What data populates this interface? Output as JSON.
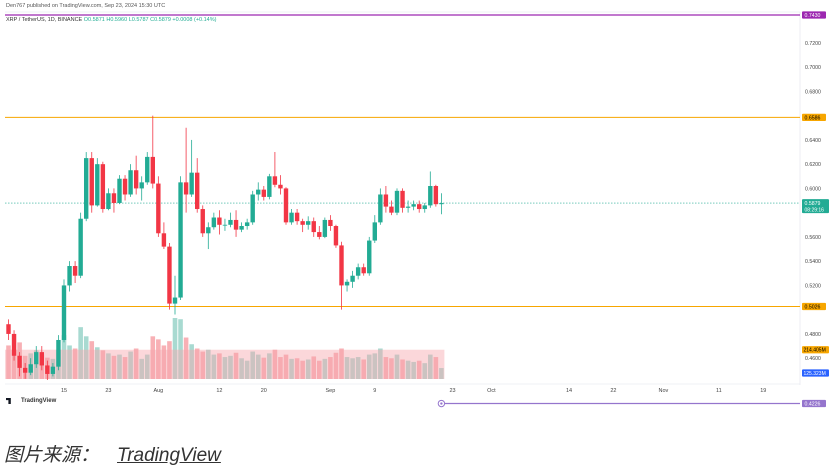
{
  "header": {
    "published_line": "Den767 published on TradingView.com, Sep 23, 2024 15:30 UTC",
    "symbol": "XRP / TetherUS, 1D, BINANCE",
    "ohlc": "O0.5871 H0.5960 L0.5787 C0.5879 +0.0008 (+0.14%)"
  },
  "watermark": "TradingView",
  "caption": {
    "label": "图片来源：",
    "link": "TradingView"
  },
  "colors": {
    "up": "#22ab94",
    "down": "#f23645",
    "vol_up": "#9fd6cc",
    "vol_down": "#f7a7ad",
    "resistance": "#f7a600",
    "top_line": "#9c27b0",
    "bottom_line": "#9575cd",
    "price_line": "#22ab94"
  },
  "chart_data": {
    "type": "candlestick",
    "ylim": [
      0.442,
      0.7455
    ],
    "y_ticks": [
      "0.7200",
      "0.7000",
      "0.6800",
      "0.6400",
      "0.6200",
      "0.6000",
      "0.5600",
      "0.5400",
      "0.5200",
      "0.4800",
      "0.4600"
    ],
    "x_ticks": [
      {
        "label": "15",
        "i": 10
      },
      {
        "label": "23",
        "i": 18
      },
      {
        "label": "Aug",
        "i": 27
      },
      {
        "label": "12",
        "i": 38
      },
      {
        "label": "20",
        "i": 46
      },
      {
        "label": "Sep",
        "i": 58
      },
      {
        "label": "9",
        "i": 66
      },
      {
        "label": "23",
        "i": 80
      },
      {
        "label": "Oct",
        "i": 87
      },
      {
        "label": "14",
        "i": 101
      },
      {
        "label": "22",
        "i": 109
      },
      {
        "label": "Nov",
        "i": 118
      },
      {
        "label": "11",
        "i": 128
      },
      {
        "label": "19",
        "i": 136
      }
    ],
    "levels": [
      {
        "name": "top",
        "value": 0.743,
        "label": "0.7430"
      },
      {
        "name": "resistance",
        "value": 0.6586,
        "label": "0.6586"
      },
      {
        "name": "support",
        "value": 0.5026,
        "label": "0.5026"
      },
      {
        "name": "bottom",
        "value": 0.4226,
        "label": "0.4226"
      }
    ],
    "last_price": {
      "value": 0.5879,
      "label": "0.5879",
      "countdown": "08:29:16"
    },
    "volume_labels": [
      {
        "label": "214.405M",
        "y_frac": 0.48
      },
      {
        "label": "125.323M",
        "y_frac": 0.94
      }
    ],
    "candles": [
      [
        0.488,
        0.492,
        0.475,
        0.48
      ],
      [
        0.48,
        0.483,
        0.458,
        0.462
      ],
      [
        0.462,
        0.465,
        0.445,
        0.452
      ],
      [
        0.452,
        0.456,
        0.443,
        0.448
      ],
      [
        0.448,
        0.46,
        0.446,
        0.455
      ],
      [
        0.455,
        0.47,
        0.452,
        0.465
      ],
      [
        0.465,
        0.47,
        0.45,
        0.454
      ],
      [
        0.454,
        0.458,
        0.442,
        0.447
      ],
      [
        0.447,
        0.456,
        0.445,
        0.453
      ],
      [
        0.453,
        0.479,
        0.45,
        0.475
      ],
      [
        0.475,
        0.525,
        0.473,
        0.52
      ],
      [
        0.52,
        0.54,
        0.515,
        0.536
      ],
      [
        0.536,
        0.54,
        0.522,
        0.528
      ],
      [
        0.528,
        0.58,
        0.526,
        0.575
      ],
      [
        0.575,
        0.63,
        0.573,
        0.625
      ],
      [
        0.625,
        0.63,
        0.58,
        0.586
      ],
      [
        0.586,
        0.625,
        0.585,
        0.62
      ],
      [
        0.62,
        0.622,
        0.58,
        0.583
      ],
      [
        0.583,
        0.6,
        0.582,
        0.596
      ],
      [
        0.596,
        0.6,
        0.58,
        0.588
      ],
      [
        0.588,
        0.611,
        0.587,
        0.608
      ],
      [
        0.608,
        0.611,
        0.59,
        0.595
      ],
      [
        0.595,
        0.62,
        0.593,
        0.615
      ],
      [
        0.615,
        0.627,
        0.595,
        0.6
      ],
      [
        0.6,
        0.61,
        0.59,
        0.605
      ],
      [
        0.605,
        0.63,
        0.603,
        0.626
      ],
      [
        0.626,
        0.66,
        0.6,
        0.604
      ],
      [
        0.604,
        0.61,
        0.56,
        0.563
      ],
      [
        0.563,
        0.572,
        0.55,
        0.552
      ],
      [
        0.552,
        0.555,
        0.5,
        0.505
      ],
      [
        0.505,
        0.528,
        0.496,
        0.51
      ],
      [
        0.51,
        0.61,
        0.508,
        0.605
      ],
      [
        0.605,
        0.65,
        0.58,
        0.595
      ],
      [
        0.595,
        0.64,
        0.593,
        0.613
      ],
      [
        0.613,
        0.625,
        0.58,
        0.583
      ],
      [
        0.583,
        0.586,
        0.56,
        0.563
      ],
      [
        0.563,
        0.572,
        0.55,
        0.568
      ],
      [
        0.568,
        0.58,
        0.566,
        0.576
      ],
      [
        0.576,
        0.582,
        0.562,
        0.57
      ],
      [
        0.57,
        0.575,
        0.565,
        0.57
      ],
      [
        0.57,
        0.58,
        0.568,
        0.574
      ],
      [
        0.574,
        0.582,
        0.56,
        0.566
      ],
      [
        0.566,
        0.572,
        0.564,
        0.569
      ],
      [
        0.569,
        0.575,
        0.566,
        0.572
      ],
      [
        0.572,
        0.598,
        0.57,
        0.595
      ],
      [
        0.595,
        0.605,
        0.59,
        0.599
      ],
      [
        0.599,
        0.602,
        0.59,
        0.593
      ],
      [
        0.593,
        0.612,
        0.591,
        0.61
      ],
      [
        0.61,
        0.63,
        0.601,
        0.603
      ],
      [
        0.603,
        0.611,
        0.595,
        0.6
      ],
      [
        0.6,
        0.601,
        0.57,
        0.572
      ],
      [
        0.572,
        0.583,
        0.57,
        0.58
      ],
      [
        0.58,
        0.583,
        0.57,
        0.573
      ],
      [
        0.573,
        0.575,
        0.564,
        0.57
      ],
      [
        0.57,
        0.577,
        0.566,
        0.573
      ],
      [
        0.573,
        0.576,
        0.56,
        0.564
      ],
      [
        0.564,
        0.569,
        0.558,
        0.56
      ],
      [
        0.56,
        0.576,
        0.559,
        0.574
      ],
      [
        0.574,
        0.578,
        0.565,
        0.569
      ],
      [
        0.569,
        0.57,
        0.551,
        0.553
      ],
      [
        0.553,
        0.556,
        0.5,
        0.52
      ],
      [
        0.52,
        0.525,
        0.515,
        0.523
      ],
      [
        0.523,
        0.532,
        0.518,
        0.528
      ],
      [
        0.528,
        0.538,
        0.525,
        0.535
      ],
      [
        0.535,
        0.538,
        0.528,
        0.53
      ],
      [
        0.53,
        0.56,
        0.528,
        0.557
      ],
      [
        0.557,
        0.578,
        0.555,
        0.572
      ],
      [
        0.572,
        0.6,
        0.57,
        0.595
      ],
      [
        0.595,
        0.602,
        0.58,
        0.585
      ],
      [
        0.585,
        0.59,
        0.578,
        0.58
      ],
      [
        0.58,
        0.6,
        0.578,
        0.598
      ],
      [
        0.598,
        0.6,
        0.58,
        0.584
      ],
      [
        0.584,
        0.59,
        0.58,
        0.585
      ],
      [
        0.585,
        0.59,
        0.582,
        0.587
      ],
      [
        0.587,
        0.59,
        0.58,
        0.583
      ],
      [
        0.583,
        0.588,
        0.58,
        0.586
      ],
      [
        0.586,
        0.614,
        0.584,
        0.602
      ],
      [
        0.602,
        0.603,
        0.585,
        0.587
      ],
      [
        0.587,
        0.596,
        0.5787,
        0.5879
      ]
    ],
    "volumes": [
      0.55,
      0.48,
      0.6,
      0.38,
      0.42,
      0.47,
      0.4,
      0.35,
      0.33,
      0.48,
      0.72,
      0.55,
      0.5,
      0.85,
      0.7,
      0.62,
      0.52,
      0.47,
      0.42,
      0.38,
      0.4,
      0.36,
      0.45,
      0.5,
      0.33,
      0.4,
      0.7,
      0.65,
      0.55,
      0.62,
      1.0,
      0.98,
      0.68,
      0.57,
      0.5,
      0.45,
      0.48,
      0.4,
      0.42,
      0.36,
      0.38,
      0.43,
      0.34,
      0.3,
      0.45,
      0.4,
      0.35,
      0.42,
      0.48,
      0.36,
      0.4,
      0.33,
      0.34,
      0.3,
      0.32,
      0.37,
      0.3,
      0.33,
      0.36,
      0.43,
      0.5,
      0.36,
      0.34,
      0.36,
      0.32,
      0.4,
      0.42,
      0.5,
      0.36,
      0.34,
      0.4,
      0.32,
      0.3,
      0.28,
      0.3,
      0.26,
      0.4,
      0.36,
      0.18
    ]
  }
}
